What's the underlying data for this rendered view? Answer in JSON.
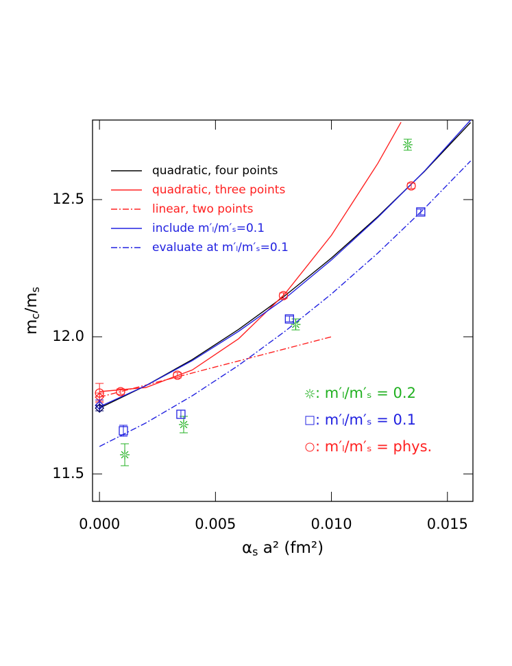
{
  "chart_data": {
    "type": "scatter",
    "x_label": [
      "α",
      "s",
      " a² (fm²)"
    ],
    "y_label": [
      "m",
      "c",
      "/m",
      "s"
    ],
    "xlim": [
      -0.0003,
      0.0161
    ],
    "ylim": [
      11.4,
      12.79
    ],
    "xticks": [
      {
        "value": 0,
        "label": "0.000"
      },
      {
        "value": 0.005,
        "label": "0.005"
      },
      {
        "value": 0.01,
        "label": "0.010"
      },
      {
        "value": 0.015,
        "label": "0.015"
      }
    ],
    "yticks": [
      11.5,
      {
        "value": 12,
        "label": "12.0"
      },
      12.5
    ],
    "series": [
      {
        "name": "quadratic, four points",
        "color": "#000000",
        "kind": "line",
        "dash": "solid",
        "x": [
          0,
          0.002,
          0.004,
          0.006,
          0.008,
          0.01,
          0.012,
          0.014,
          0.016
        ],
        "values": [
          11.74,
          11.822,
          11.917,
          12.027,
          12.15,
          12.287,
          12.438,
          12.602,
          12.781
        ]
      },
      {
        "name": "quadratic, three points",
        "color": "#ff2020",
        "kind": "line",
        "dash": "solid",
        "x": [
          0,
          0.002,
          0.004,
          0.006,
          0.008,
          0.01,
          0.012,
          0.013
        ],
        "values": [
          11.8,
          11.815,
          11.879,
          11.993,
          12.157,
          12.37,
          12.632,
          12.782
        ]
      },
      {
        "name": "linear, two points",
        "color": "#ff2020",
        "kind": "line",
        "dash": "dashdot",
        "x": [
          0,
          0.01
        ],
        "values": [
          11.78,
          12.0
        ]
      },
      {
        "name": "include m′ₗ/m′ₛ=0.1",
        "color": "#2020e0",
        "kind": "line",
        "dash": "solid",
        "x": [
          0,
          0.002,
          0.004,
          0.006,
          0.008,
          0.01,
          0.012,
          0.014,
          0.016
        ],
        "values": [
          11.745,
          11.822,
          11.913,
          12.02,
          12.14,
          12.28,
          12.435,
          12.603,
          12.79
        ]
      },
      {
        "name": "evaluate at m′ₗ/m′ₛ=0.1",
        "color": "#2020e0",
        "kind": "line",
        "dash": "dashdot",
        "x": [
          0,
          0.002,
          0.004,
          0.006,
          0.008,
          0.01,
          0.012,
          0.014,
          0.016
        ],
        "values": [
          11.6,
          11.686,
          11.785,
          11.896,
          12.02,
          12.156,
          12.305,
          12.467,
          12.641
        ]
      },
      {
        "name": ": m′ₗ/m′ₛ = 0.2",
        "color": "#20b020",
        "kind": "points",
        "marker": "burst",
        "x": [
          0.00109,
          0.00363,
          0.00846,
          0.01329
        ],
        "values": [
          11.57,
          11.68,
          12.045,
          12.7
        ],
        "errors": [
          0.04,
          0.03,
          0.02,
          0.02
        ]
      },
      {
        "name": ": m′ₗ/m′ₛ = 0.1",
        "color": "#2020e0",
        "kind": "points",
        "marker": "square",
        "x": [
          0.00103,
          0.00351,
          0.00819,
          0.01385
        ],
        "values": [
          11.6575,
          11.7175,
          12.065,
          12.455
        ],
        "errors": [
          0.02,
          0.015,
          0.01,
          0.01
        ]
      },
      {
        "name": ": m′ₗ/m′ₛ = phys.",
        "color": "#ff2020",
        "kind": "points",
        "marker": "circle",
        "x": [
          0,
          0.00091,
          0.00336,
          0.00793,
          0.01344
        ],
        "values": [
          11.795,
          11.8,
          11.86,
          12.15,
          12.55
        ],
        "errors": [
          0.035,
          0.01,
          0.01,
          0.01,
          0.01
        ]
      },
      {
        "color": "#ff2020",
        "kind": "points",
        "marker": "diamond",
        "x": [
          0
        ],
        "values": [
          11.78
        ],
        "errors": [
          0.015
        ]
      },
      {
        "color": "#2020e0",
        "kind": "points",
        "marker": "diamond",
        "x": [
          0
        ],
        "values": [
          11.75
        ],
        "errors": [
          0.02
        ]
      },
      {
        "color": "#000060",
        "kind": "points",
        "marker": "diamond",
        "x": [
          0
        ],
        "values": [
          11.74
        ],
        "errors": [
          0.01
        ]
      }
    ]
  }
}
